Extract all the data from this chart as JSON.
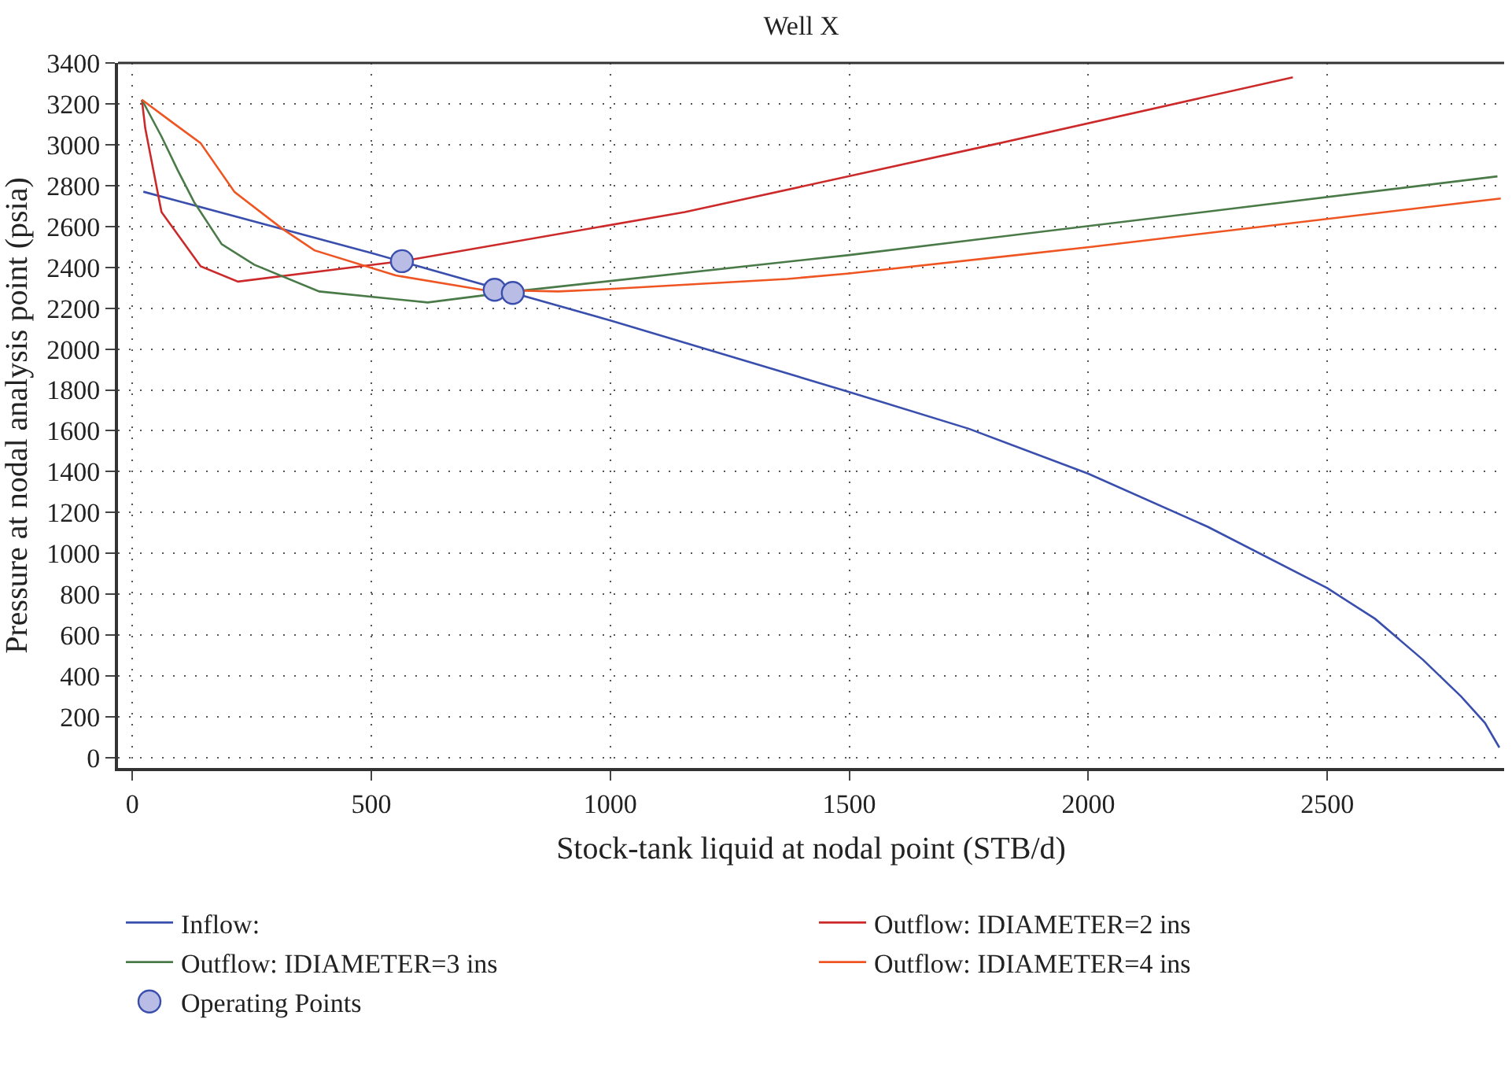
{
  "chart_data": {
    "type": "line",
    "title": "Well X",
    "xlabel": "Stock-tank liquid at nodal point (STB/d)",
    "ylabel": "Pressure at nodal analysis point (psia)",
    "xlim": [
      -30,
      2870
    ],
    "xticks": [
      0,
      500,
      1000,
      1500,
      2000,
      2500
    ],
    "ylim": [
      -50,
      3400
    ],
    "yticks": [
      0,
      200,
      400,
      600,
      800,
      1000,
      1200,
      1400,
      1600,
      1800,
      2000,
      2200,
      2400,
      2600,
      2800,
      3000,
      3200,
      3400
    ],
    "grid": true,
    "legend": "bottom",
    "marker": "none",
    "line_style": "solid",
    "series": [
      {
        "name": "Inflow:",
        "color": "#3a4fad",
        "x": [
          23,
          500,
          1000,
          1500,
          1750,
          2000,
          2250,
          2500,
          2600,
          2700,
          2780,
          2830,
          2860
        ],
        "values": [
          2770,
          2470,
          2140,
          1790,
          1610,
          1390,
          1130,
          830,
          680,
          480,
          300,
          170,
          50
        ]
      },
      {
        "name": "Outflow: IDIAMETER=2 ins",
        "color": "#cc2a2a",
        "x": [
          20,
          27,
          61,
          143,
          221,
          564,
          1156,
          1800,
          2428
        ],
        "values": [
          3220,
          3080,
          2670,
          2405,
          2330,
          2430,
          2670,
          3000,
          3330
        ]
      },
      {
        "name": "Outflow: IDIAMETER=3 ins",
        "color": "#4a7a48",
        "x": [
          20,
          61,
          95,
          129,
          187,
          255,
          391,
          618,
          799,
          1500,
          2856
        ],
        "values": [
          3220,
          3040,
          2875,
          2720,
          2513,
          2413,
          2282,
          2228,
          2282,
          2460,
          2845
        ]
      },
      {
        "name": "Outflow: IDIAMETER=4 ins",
        "color": "#ee5522",
        "x": [
          20,
          85,
          143,
          214,
          313,
          381,
          551,
          731,
          891,
          969,
          1370,
          1500,
          2006,
          2863
        ],
        "values": [
          3220,
          3107,
          3007,
          2768,
          2590,
          2483,
          2360,
          2290,
          2282,
          2290,
          2343,
          2370,
          2500,
          2737
        ]
      },
      {
        "name": "Operating Points",
        "type": "scatter",
        "marker": "circle",
        "color": "#b9bde6",
        "x": [
          564,
          758,
          796
        ],
        "values": [
          2430,
          2290,
          2275
        ]
      }
    ]
  }
}
